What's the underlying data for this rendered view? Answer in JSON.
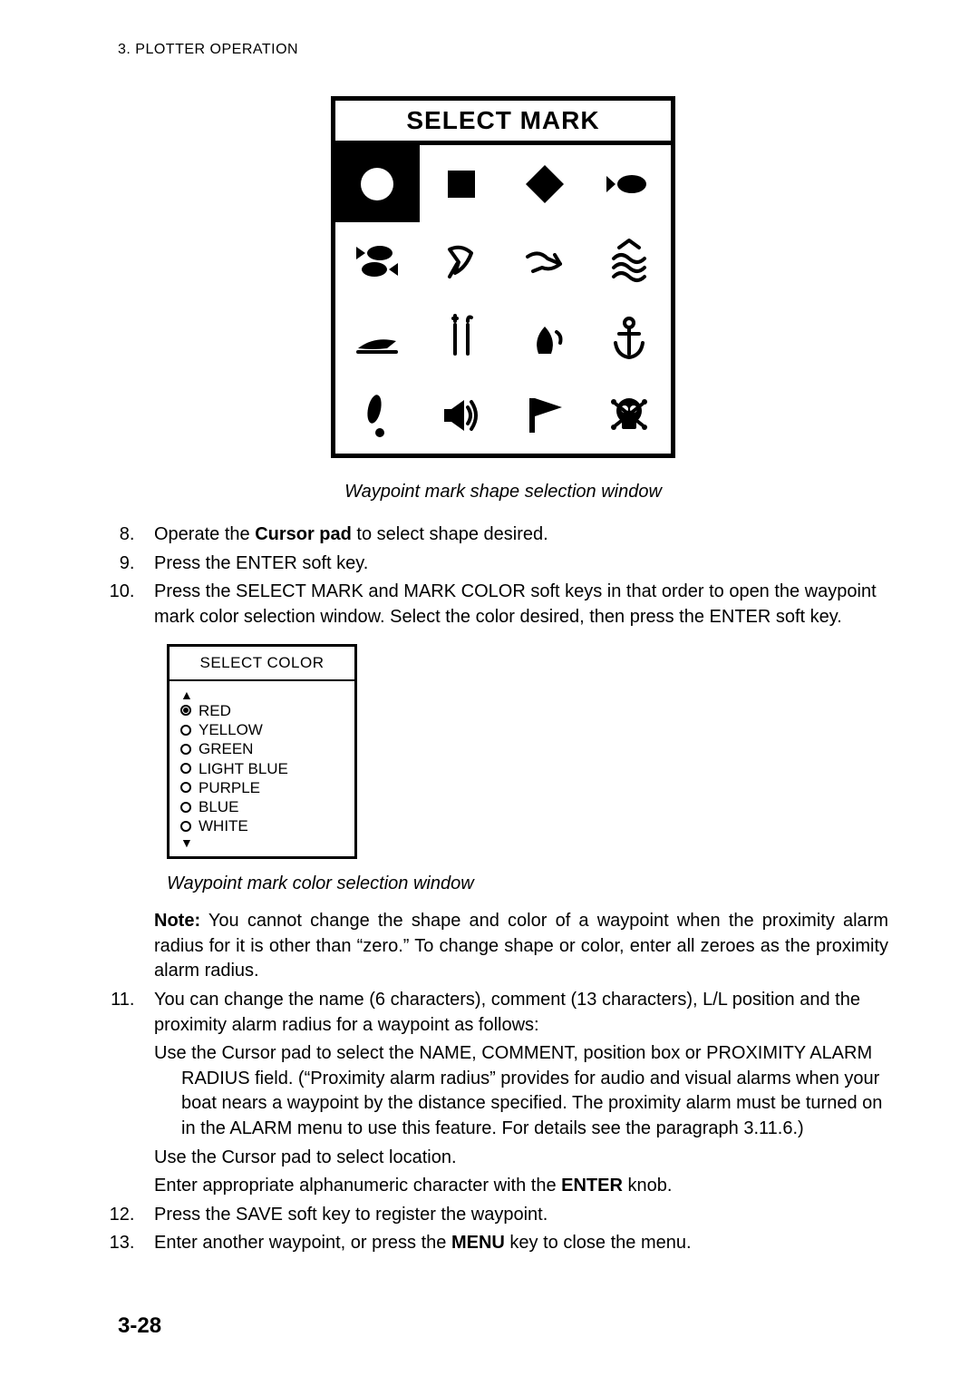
{
  "header": "3. PLOTTER OPERATION",
  "mark_panel": {
    "title": "SELECT MARK",
    "icons": [
      "circle",
      "square",
      "diamond",
      "fish-right",
      "fish-pair",
      "wave-down",
      "wave-right",
      "waves",
      "wing",
      "tower",
      "buoy",
      "anchor",
      "excl",
      "sound",
      "flag",
      "skull"
    ],
    "selected_index": 0
  },
  "caption_shape": "Waypoint mark shape selection window",
  "steps": {
    "start": 8,
    "items": [
      {
        "html": "Operate the <b>Cursor pad</b> to select shape desired."
      },
      {
        "html": "Press the ENTER soft key."
      },
      {
        "html": "Press the SELECT MARK and MARK COLOR soft keys in that order to open the waypoint mark color selection window. Select the color desired, then press the ENTER soft key.",
        "has_color_box": true,
        "caption": "Waypoint mark color selection window",
        "note_label": "Note:",
        "note": "You cannot change the shape and color of a waypoint when the proximity alarm radius for it is other than “zero.” To change shape or color, enter all zeroes as the proximity alarm radius."
      },
      {
        "html": "You can change the name (6 characters), comment (13 characters), L/L position and the proximity alarm radius for a waypoint as follows:",
        "sub": [
          "Use the Cursor pad to select the NAME, COMMENT, position box or PROXIMITY ALARM RADIUS field. (“Proximity alarm radius” provides for audio and visual alarms when your boat nears a waypoint by the distance specified. The proximity alarm must be turned on in the ALARM menu to use this feature. For details see the paragraph 3.11.6.)",
          "Use the Cursor pad to select location.",
          "Enter appropriate alphanumeric character with the <b>ENTER</b> knob."
        ]
      },
      {
        "html": "Press the SAVE soft key to register the waypoint."
      },
      {
        "html": "Enter another waypoint, or press the <b>MENU</b> key to close the menu."
      }
    ]
  },
  "color_box": {
    "title": "SELECT COLOR",
    "options": [
      "RED",
      "YELLOW",
      "GREEN",
      "LIGHT BLUE",
      "PURPLE",
      "BLUE",
      "WHITE"
    ],
    "selected": 0
  },
  "page_number": "3-28"
}
